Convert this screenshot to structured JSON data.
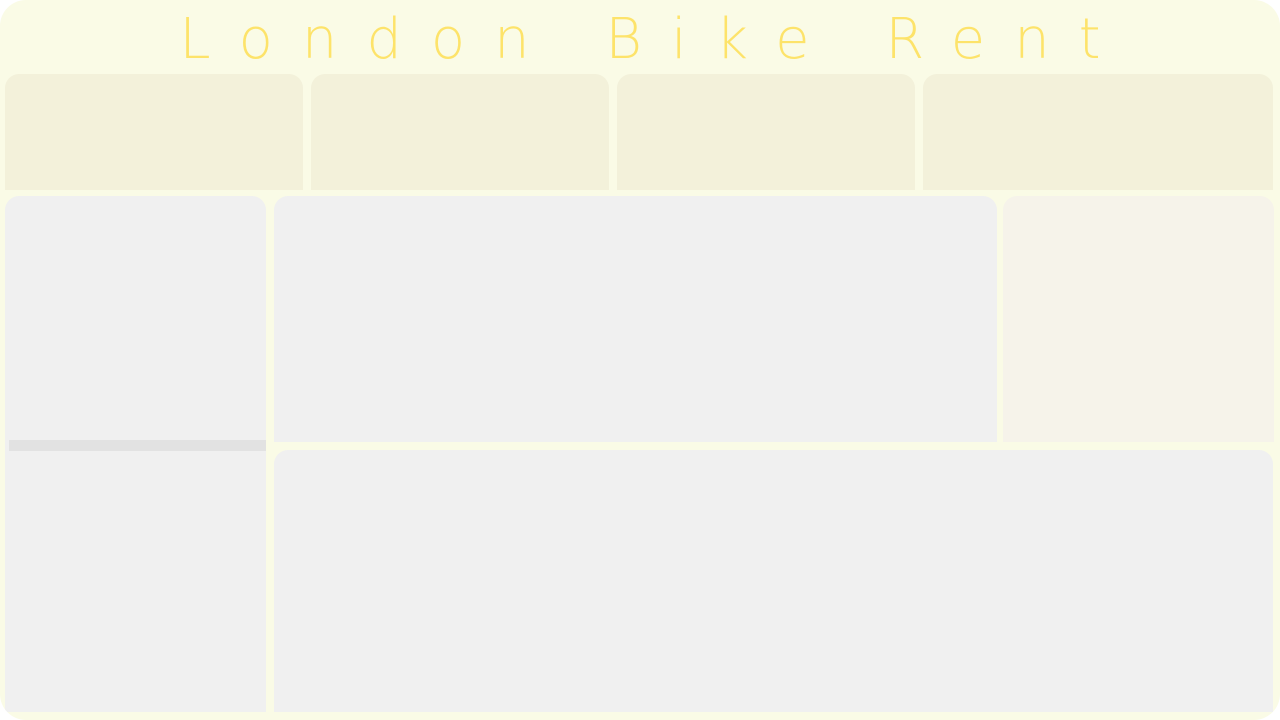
{
  "header": {
    "title": "London Bike Rent",
    "title_color": "#fde36a"
  },
  "colors": {
    "background": "#fafbe6",
    "kpi_card": "#f3f1da",
    "panel": "#f0f0f0",
    "side_panel": "#f6f3ea",
    "divider": "#e2e2e2"
  },
  "kpi_cards": [
    {},
    {},
    {},
    {}
  ],
  "panels": {}
}
